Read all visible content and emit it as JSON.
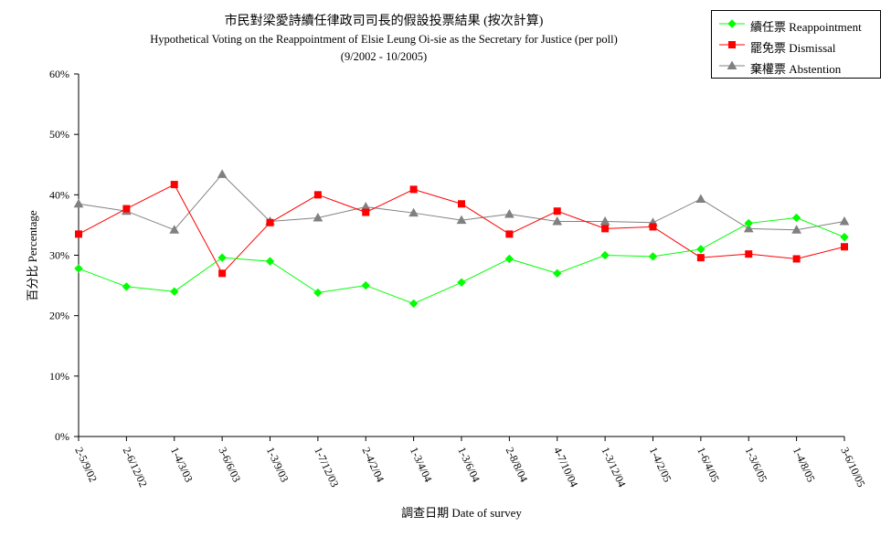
{
  "chart_data": {
    "type": "line",
    "title": "市民對梁愛詩續任律政司司長的假設投票結果 (按次計算)",
    "subtitle": "Hypothetical Voting on the Reappointment of  Elsie Leung Oi-sie as the Secretary for Justice (per poll)",
    "subtitle2": "(9/2002 - 10/2005)",
    "xlabel": "調查日期 Date of survey",
    "ylabel": "百分比 Percentage",
    "ylim": [
      0,
      60
    ],
    "yticks": [
      "0%",
      "10%",
      "20%",
      "30%",
      "40%",
      "50%",
      "60%"
    ],
    "grid": false,
    "legend_position": "top-right",
    "categories": [
      "2-5/9/02",
      "2-6/12/02",
      "1-4/3/03",
      "3-6/6/03",
      "1-3/9/03",
      "1-7/12/03",
      "2-4/2/04",
      "1-3/4/04",
      "1-3/6/04",
      "2-8/8/04",
      "4-7/10/04",
      "1-3/12/04",
      "1-4/2/05",
      "1-6/4/05",
      "1-3/6/05",
      "1-4/8/05",
      "3-6/10/05"
    ],
    "series": [
      {
        "name": "續任票 Reappointment",
        "color": "#00ff00",
        "marker": "diamond",
        "values": [
          27.8,
          24.8,
          24.0,
          29.6,
          29.0,
          23.8,
          25.0,
          22.0,
          25.5,
          29.4,
          27.0,
          30.0,
          29.8,
          31.0,
          35.3,
          36.2,
          33.0
        ]
      },
      {
        "name": "罷免票 Dismissal",
        "color": "#ff0000",
        "marker": "square",
        "values": [
          33.5,
          37.7,
          41.7,
          27.0,
          35.4,
          40.0,
          37.1,
          40.9,
          38.5,
          33.5,
          37.3,
          34.4,
          34.7,
          29.6,
          30.2,
          29.4,
          31.4
        ]
      },
      {
        "name": "棄權票 Abstention",
        "color": "#808080",
        "marker": "triangle",
        "values": [
          38.5,
          37.3,
          34.2,
          43.4,
          35.6,
          36.2,
          38.0,
          37.0,
          35.8,
          36.8,
          35.6,
          35.6,
          35.4,
          39.3,
          34.4,
          34.2,
          35.6
        ]
      }
    ]
  }
}
